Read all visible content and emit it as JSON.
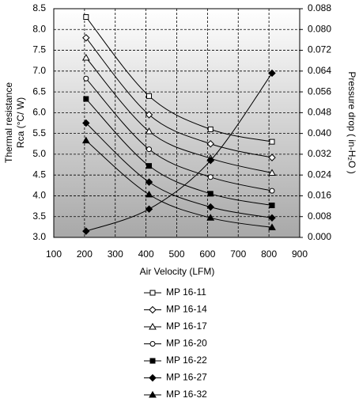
{
  "chart_data": {
    "type": "line",
    "x_label": "Air Velocity (LFM)",
    "y_label": [
      "Thermal resistance",
      "Rca (°C/ W)"
    ],
    "y2_label": "Pressure drop ( in-H₂O )",
    "x": [
      205,
      410,
      610,
      810
    ],
    "xlim": [
      100,
      900
    ],
    "xticks": [
      100,
      200,
      300,
      400,
      500,
      600,
      700,
      800,
      900
    ],
    "ylim": [
      3,
      8.5
    ],
    "yticks": [
      {
        "value": 3,
        "label": "3.0"
      },
      {
        "value": 3.5,
        "label": "3.5"
      },
      {
        "value": 4,
        "label": "4.0"
      },
      {
        "value": 4.5,
        "label": "4.5"
      },
      {
        "value": 5,
        "label": "5.0"
      },
      {
        "value": 5.5,
        "label": "5.5"
      },
      {
        "value": 6,
        "label": "6.0"
      },
      {
        "value": 6.5,
        "label": "6.5"
      },
      {
        "value": 7,
        "label": "7.0"
      },
      {
        "value": 7.5,
        "label": "7.5"
      },
      {
        "value": 8,
        "label": "8.0"
      },
      {
        "value": 8.5,
        "label": "8.5"
      }
    ],
    "y2lim": [
      0,
      0.088
    ],
    "y2ticks": [
      {
        "value": 0,
        "label": "0.000"
      },
      {
        "value": 0.008,
        "label": "0.008"
      },
      {
        "value": 0.016,
        "label": "0.016"
      },
      {
        "value": 0.024,
        "label": "0.024"
      },
      {
        "value": 0.032,
        "label": "0.032"
      },
      {
        "value": 0.04,
        "label": "0.040"
      },
      {
        "value": 0.048,
        "label": "0.048"
      },
      {
        "value": 0.056,
        "label": "0.056"
      },
      {
        "value": 0.064,
        "label": "0.064"
      },
      {
        "value": 0.072,
        "label": "0.072"
      },
      {
        "value": 0.08,
        "label": "0.080"
      },
      {
        "value": 0.088,
        "label": "0.088"
      }
    ],
    "grid": true,
    "series": [
      {
        "name": "MP 16-11",
        "color": "#000000",
        "marker": "square",
        "filled": false,
        "values": [
          8.3,
          6.4,
          5.6,
          5.3
        ]
      },
      {
        "name": "MP 16-14",
        "color": "#000000",
        "marker": "diamond",
        "filled": false,
        "values": [
          7.8,
          5.95,
          5.25,
          4.92
        ]
      },
      {
        "name": "MP 16-17",
        "color": "#000000",
        "marker": "triangle",
        "filled": false,
        "values": [
          7.32,
          5.55,
          4.9,
          4.55
        ]
      },
      {
        "name": "MP 16-20",
        "color": "#000000",
        "marker": "circle",
        "filled": false,
        "values": [
          6.82,
          5.12,
          4.45,
          4.12
        ]
      },
      {
        "name": "MP 16-22",
        "color": "#000000",
        "marker": "square",
        "filled": true,
        "values": [
          6.33,
          4.72,
          4.05,
          3.77
        ]
      },
      {
        "name": "MP 16-27",
        "color": "#000000",
        "marker": "diamond",
        "filled": true,
        "values": [
          5.75,
          4.33,
          3.73,
          3.47
        ]
      },
      {
        "name": "MP 16-32",
        "color": "#000000",
        "marker": "triangle",
        "filled": true,
        "values": [
          5.33,
          4.03,
          3.47,
          3.24
        ]
      },
      {
        "color": "#000000",
        "marker": "diamond",
        "filled": true,
        "axis": "y2",
        "values": [
          0.0024,
          0.0109,
          0.0296,
          0.0632
        ]
      }
    ]
  }
}
